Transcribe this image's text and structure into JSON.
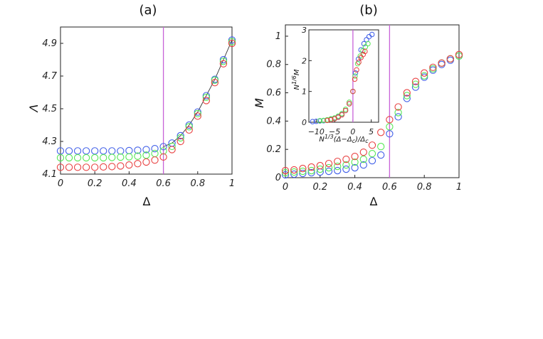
{
  "chart_data": [
    {
      "type": "scatter",
      "panel_label": "(a)",
      "xlabel": "Δ",
      "ylabel": "Λ",
      "xlim": [
        0,
        1
      ],
      "ylim": [
        4.1,
        5.0
      ],
      "xticks": [
        "0",
        "0.2",
        "0.4",
        "0.6",
        "0.8",
        "1"
      ],
      "yticks": [
        "4.1",
        "4.3",
        "4.5",
        "4.7",
        "4.9"
      ],
      "critical_line": 0.6,
      "x": [
        0,
        0.05,
        0.1,
        0.15,
        0.2,
        0.25,
        0.3,
        0.35,
        0.4,
        0.45,
        0.5,
        0.55,
        0.6,
        0.65,
        0.7,
        0.75,
        0.8,
        0.85,
        0.9,
        0.95,
        1.0
      ],
      "series": [
        {
          "name": "blue",
          "color": "#3f5ee8",
          "values": [
            4.242,
            4.242,
            4.242,
            4.242,
            4.242,
            4.242,
            4.242,
            4.242,
            4.244,
            4.246,
            4.25,
            4.256,
            4.268,
            4.29,
            4.335,
            4.4,
            4.48,
            4.58,
            4.68,
            4.8,
            4.92
          ]
        },
        {
          "name": "green",
          "color": "#55e855",
          "values": [
            4.2,
            4.2,
            4.2,
            4.2,
            4.2,
            4.2,
            4.202,
            4.204,
            4.206,
            4.21,
            4.216,
            4.226,
            4.242,
            4.27,
            4.322,
            4.39,
            4.47,
            4.57,
            4.675,
            4.79,
            4.91
          ]
        },
        {
          "name": "red",
          "color": "#e84040",
          "values": [
            4.142,
            4.142,
            4.142,
            4.142,
            4.142,
            4.144,
            4.146,
            4.15,
            4.156,
            4.164,
            4.174,
            4.186,
            4.205,
            4.25,
            4.3,
            4.37,
            4.455,
            4.55,
            4.66,
            4.775,
            4.9
          ]
        }
      ],
      "line_series": "blue"
    },
    {
      "type": "scatter",
      "panel_label": "(b)",
      "xlabel": "Δ",
      "ylabel": "M",
      "xlim": [
        0,
        1
      ],
      "ylim": [
        0,
        1.08
      ],
      "xticks": [
        "0",
        "0.2",
        "0.4",
        "0.6",
        "0.8",
        "1"
      ],
      "yticks": [
        "0",
        "0.2",
        "0.4",
        "0.6",
        "0.8",
        "1"
      ],
      "critical_line": 0.6,
      "x": [
        0,
        0.05,
        0.1,
        0.15,
        0.2,
        0.25,
        0.3,
        0.35,
        0.4,
        0.45,
        0.5,
        0.55,
        0.6,
        0.65,
        0.7,
        0.75,
        0.8,
        0.85,
        0.9,
        0.95,
        1.0
      ],
      "series": [
        {
          "name": "blue",
          "color": "#3f5ee8",
          "values": [
            0.02,
            0.025,
            0.03,
            0.035,
            0.04,
            0.045,
            0.05,
            0.06,
            0.07,
            0.09,
            0.12,
            0.16,
            0.31,
            0.43,
            0.56,
            0.64,
            0.71,
            0.76,
            0.8,
            0.83,
            0.86
          ]
        },
        {
          "name": "green",
          "color": "#55e855",
          "values": [
            0.035,
            0.04,
            0.045,
            0.05,
            0.06,
            0.07,
            0.08,
            0.09,
            0.11,
            0.13,
            0.17,
            0.22,
            0.36,
            0.46,
            0.58,
            0.66,
            0.72,
            0.77,
            0.81,
            0.84,
            0.86
          ]
        },
        {
          "name": "red",
          "color": "#e84040",
          "values": [
            0.05,
            0.055,
            0.065,
            0.075,
            0.085,
            0.1,
            0.115,
            0.13,
            0.15,
            0.18,
            0.23,
            0.32,
            0.41,
            0.5,
            0.6,
            0.68,
            0.74,
            0.78,
            0.81,
            0.84,
            0.87
          ]
        }
      ],
      "inset": {
        "xlabel_prefix": "N",
        "xlabel_exp": "1/3",
        "xlabel_body": "(Δ−Δ",
        "xlabel_sub1": "c",
        "xlabel_mid": ")/Δ",
        "xlabel_sub2": "c",
        "ylabel_prefix": "N",
        "ylabel_exp": "1/6",
        "ylabel_body": "M",
        "xlim": [
          -12,
          7
        ],
        "ylim": [
          0,
          3
        ],
        "xticks": [
          "−10",
          "−5",
          "0",
          "5"
        ],
        "yticks": [
          "0",
          "1",
          "2",
          "3"
        ],
        "critical_line": 0,
        "series": [
          {
            "name": "blue",
            "color": "#3f5ee8",
            "x": [
              -11,
              -10,
              -9,
              -8,
              -7,
              -6,
              -5,
              -4,
              -3,
              -2,
              -1,
              0,
              0.7,
              1.5,
              2.2,
              3,
              3.7,
              4.4,
              5.2
            ],
            "y": [
              0.02,
              0.03,
              0.04,
              0.05,
              0.07,
              0.09,
              0.12,
              0.17,
              0.25,
              0.38,
              0.6,
              1.0,
              1.6,
              2.05,
              2.35,
              2.55,
              2.68,
              2.78,
              2.85
            ]
          },
          {
            "name": "green",
            "color": "#55e855",
            "x": [
              -9,
              -8,
              -7,
              -6,
              -5,
              -4,
              -3,
              -2,
              -1,
              0,
              0.6,
              1.3,
              2,
              2.7,
              3.4,
              4.1
            ],
            "y": [
              0.05,
              0.06,
              0.08,
              0.11,
              0.14,
              0.2,
              0.28,
              0.42,
              0.65,
              1.0,
              1.5,
              1.9,
              2.15,
              2.32,
              2.45,
              2.55
            ]
          },
          {
            "name": "red",
            "color": "#e84040",
            "x": [
              -7,
              -6,
              -5,
              -4,
              -3,
              -2,
              -1,
              0,
              0.5,
              1,
              1.6,
              2.2,
              2.8,
              3.3
            ],
            "y": [
              0.06,
              0.08,
              0.11,
              0.16,
              0.24,
              0.38,
              0.6,
              1.0,
              1.4,
              1.7,
              1.95,
              2.1,
              2.2,
              2.3
            ]
          }
        ]
      }
    }
  ],
  "colors": {
    "critical_line": "#c862d8",
    "axis": "#222222"
  }
}
